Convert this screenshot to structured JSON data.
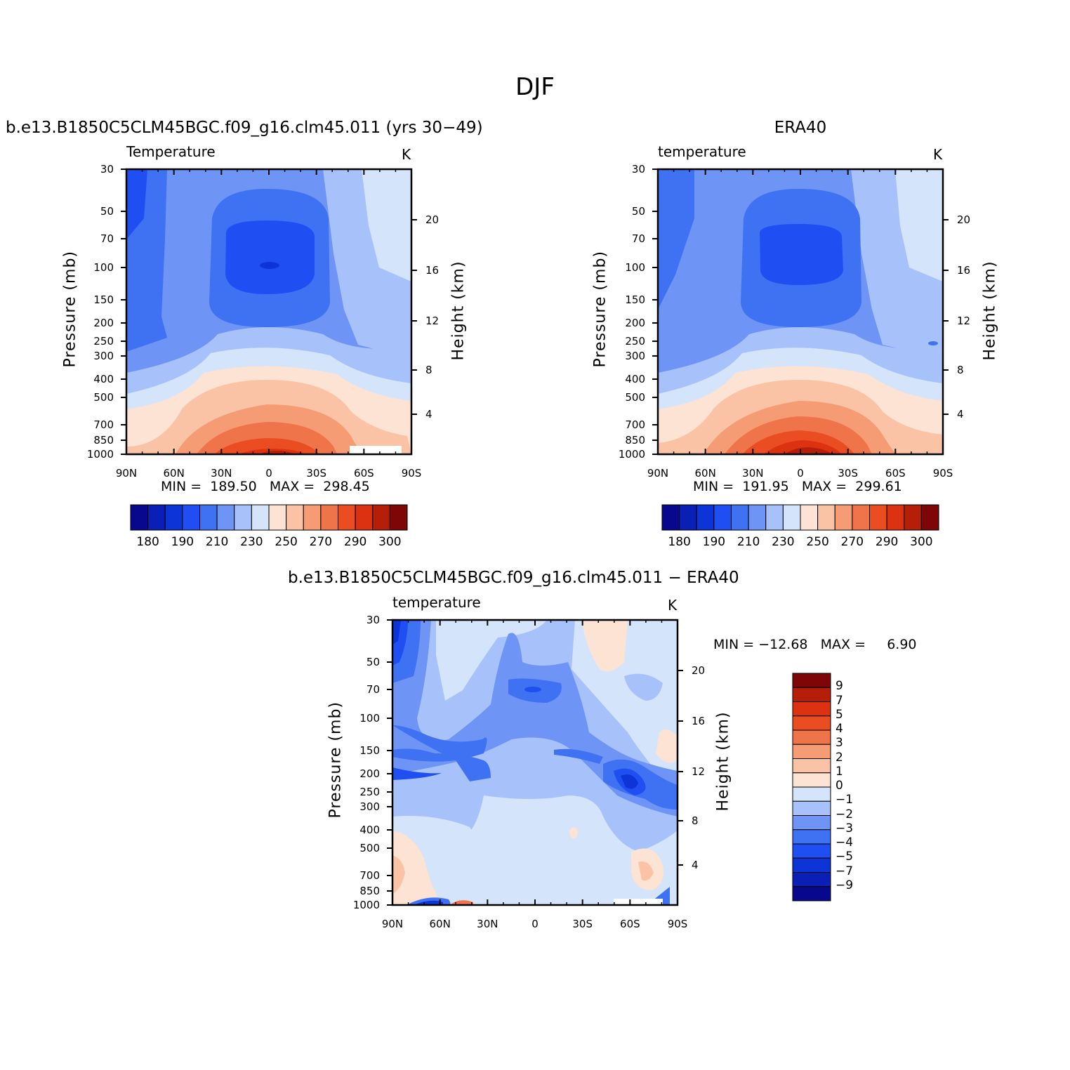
{
  "figure_title": "DJF",
  "panels": [
    {
      "title": "b.e13.B1850C5CLM45BGC.f09_g16.clm45.011 (yrs 30−49)",
      "variable": "Temperature",
      "units": "K",
      "min_max": "MIN =  189.50   MAX =  298.45",
      "ylabel_left": "Pressure (mb)",
      "ylabel_right": "Height (km)"
    },
    {
      "title": "ERA40",
      "variable": "temperature",
      "units": "K",
      "min_max": "MIN =  191.95   MAX =  299.61",
      "ylabel_left": "Pressure (mb)",
      "ylabel_right": "Height (km)"
    },
    {
      "title": "b.e13.B1850C5CLM45BGC.f09_g16.clm45.011 − ERA40",
      "variable": "temperature",
      "units": "K",
      "min_max": "MIN = −12.68   MAX =     6.90",
      "ylabel_left": "Pressure (mb)",
      "ylabel_right": "Height (km)"
    }
  ],
  "chart_data": [
    {
      "type": "heatmap",
      "title": "b.e13.B1850C5CLM45BGC.f09_g16.clm45.011 (yrs 30−49)",
      "x_ticks": [
        "90N",
        "60N",
        "30N",
        "0",
        "30S",
        "60S",
        "90S"
      ],
      "y_ticks_pressure": [
        "30",
        "50",
        "70",
        "100",
        "150",
        "200",
        "250",
        "300",
        "400",
        "500",
        "700",
        "850",
        "1000"
      ],
      "y_ticks_height": [
        "20",
        "16",
        "12",
        "8",
        "4"
      ],
      "colorbar_ticks": [
        "180",
        "190",
        "210",
        "230",
        "250",
        "270",
        "290",
        "300"
      ],
      "min": 189.5,
      "max": 298.45
    },
    {
      "type": "heatmap",
      "title": "ERA40",
      "x_ticks": [
        "90N",
        "60N",
        "30N",
        "0",
        "30S",
        "60S",
        "90S"
      ],
      "y_ticks_pressure": [
        "30",
        "50",
        "70",
        "100",
        "150",
        "200",
        "250",
        "300",
        "400",
        "500",
        "700",
        "850",
        "1000"
      ],
      "y_ticks_height": [
        "20",
        "16",
        "12",
        "8",
        "4"
      ],
      "colorbar_ticks": [
        "180",
        "190",
        "210",
        "230",
        "250",
        "270",
        "290",
        "300"
      ],
      "min": 191.95,
      "max": 299.61
    },
    {
      "type": "heatmap",
      "title": "b.e13.B1850C5CLM45BGC.f09_g16.clm45.011 − ERA40",
      "x_ticks": [
        "90N",
        "60N",
        "30N",
        "0",
        "30S",
        "60S",
        "90S"
      ],
      "y_ticks_pressure": [
        "30",
        "50",
        "70",
        "100",
        "150",
        "200",
        "250",
        "300",
        "400",
        "500",
        "700",
        "850",
        "1000"
      ],
      "y_ticks_height": [
        "20",
        "16",
        "12",
        "8",
        "4"
      ],
      "colorbar_ticks": [
        "9",
        "7",
        "5",
        "4",
        "3",
        "2",
        "1",
        "0",
        "−1",
        "−2",
        "−3",
        "−4",
        "−5",
        "−7",
        "−9"
      ],
      "min": -12.68,
      "max": 6.9
    }
  ],
  "palette": [
    "#08088f",
    "#0a1fb5",
    "#0d34d6",
    "#1f4ff2",
    "#3f72f2",
    "#6e95f5",
    "#a7c2fa",
    "#d4e4fb",
    "#fde3d3",
    "#fbc3a6",
    "#f69c74",
    "#f0744a",
    "#ea4d22",
    "#dd3212",
    "#b51f0a",
    "#7f0606"
  ]
}
